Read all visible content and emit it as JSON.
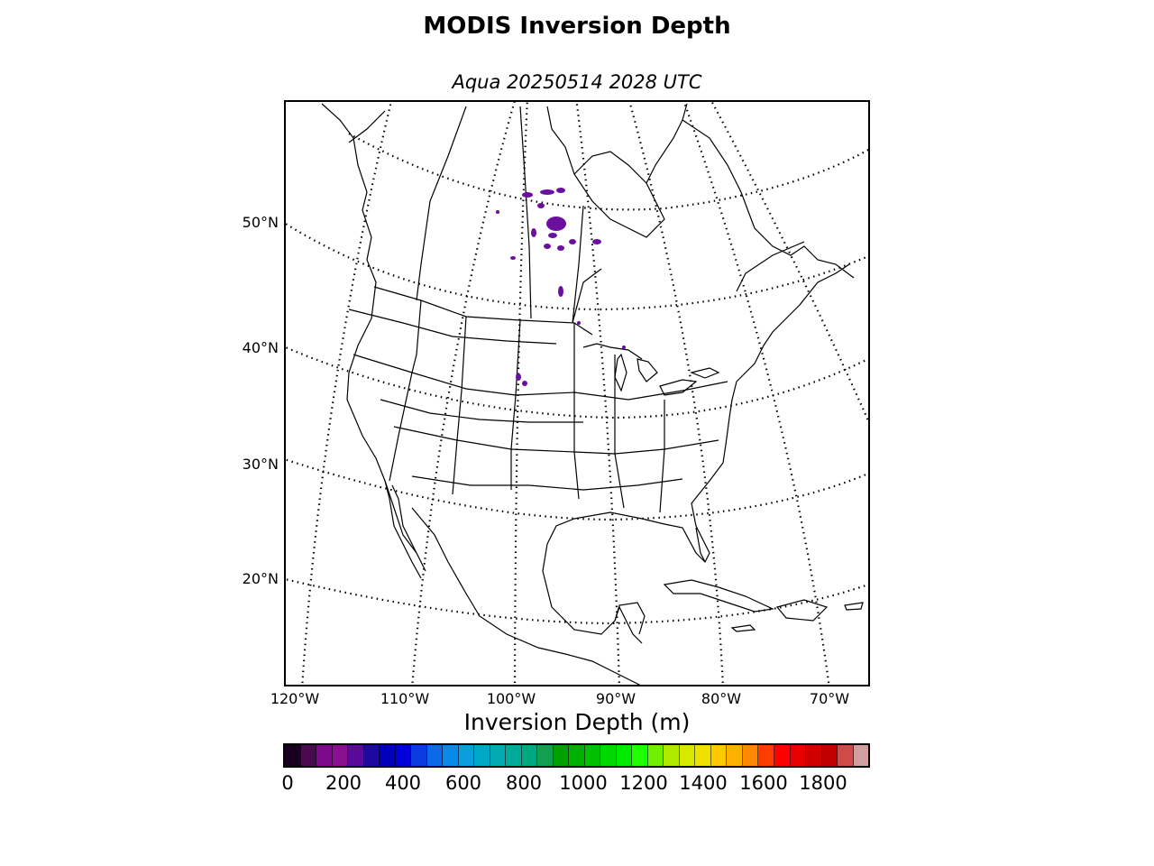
{
  "header": {
    "title": "MODIS Inversion Depth",
    "subtitle": "Aqua 20250514 2028 UTC"
  },
  "map": {
    "lat_labels": [
      "50°N",
      "40°N",
      "30°N",
      "20°N"
    ],
    "lon_labels": [
      "120°W",
      "110°W",
      "100°W",
      "90°W",
      "80°W",
      "70°W"
    ],
    "data_color": "#6a0fa0"
  },
  "colorbar": {
    "label": "Inversion Depth (m)",
    "tick_labels": [
      "0",
      "200",
      "400",
      "600",
      "800",
      "1000",
      "1200",
      "1400",
      "1600",
      "1800"
    ],
    "colors": [
      "#1a0020",
      "#4a0a50",
      "#7c0a8a",
      "#8a108f",
      "#5a0a98",
      "#1c0aa0",
      "#0000b8",
      "#0000d8",
      "#0a3ae0",
      "#0a6ae8",
      "#0a8ae8",
      "#0a9edc",
      "#00a8c8",
      "#00aab0",
      "#00aa9a",
      "#00a880",
      "#10a050",
      "#00a000",
      "#00b000",
      "#00c000",
      "#00d800",
      "#00ea00",
      "#20ff00",
      "#70f000",
      "#b0e800",
      "#d8e800",
      "#f0e000",
      "#ffc800",
      "#ffb000",
      "#ff8800",
      "#ff3c00",
      "#ff0000",
      "#e80000",
      "#d00000",
      "#c00000",
      "#d04a4a",
      "#d0a0a0"
    ]
  }
}
